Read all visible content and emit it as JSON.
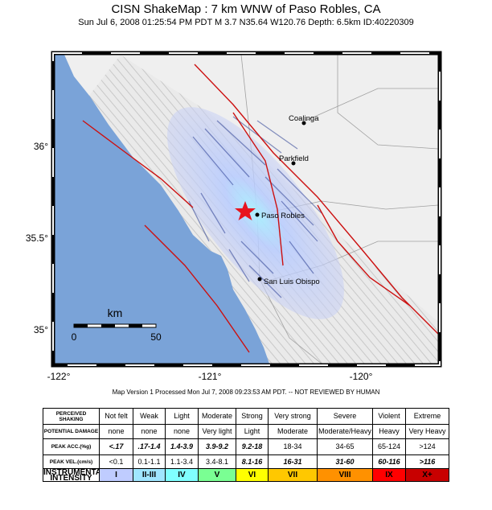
{
  "header": {
    "title": "CISN ShakeMap : 7 km WNW of  Paso Robles, CA",
    "subtitle": "Sun Jul  6, 2008 01:25:54 PM PDT   M 3.7   N35.64 W120.76   Depth: 6.5km   ID:40220309"
  },
  "map": {
    "lat_labels": [
      "36°",
      "35.5°",
      "35°"
    ],
    "lon_labels": [
      "-122°",
      "-121°",
      "-120°"
    ],
    "cities": [
      "Coalinga",
      "Parkfield",
      "Paso Robles",
      "San Luis Obispo"
    ],
    "scale": {
      "unit": "km",
      "start": "0",
      "end": "50"
    }
  },
  "footer": "Map Version 1 Processed Mon Jul 7, 2008 09:23:53 AM PDT. -- NOT REVIEWED BY HUMAN",
  "table": {
    "rows": [
      [
        "PERCEIVED SHAKING",
        "Not felt",
        "Weak",
        "Light",
        "Moderate",
        "Strong",
        "Very strong",
        "Severe",
        "Violent",
        "Extreme"
      ],
      [
        "POTENTIAL DAMAGE",
        "none",
        "none",
        "none",
        "Very light",
        "Light",
        "Moderate",
        "Moderate/Heavy",
        "Heavy",
        "Very Heavy"
      ],
      [
        "PEAK ACC.(%g)",
        "<.17",
        ".17-1.4",
        "1.4-3.9",
        "3.9-9.2",
        "9.2-18",
        "18-34",
        "34-65",
        "65-124",
        ">124"
      ],
      [
        "PEAK VEL.(cm/s)",
        "<0.1",
        "0.1-1.1",
        "1.1-3.4",
        "3.4-8.1",
        "8.1-16",
        "16-31",
        "31-60",
        "60-116",
        ">116"
      ],
      [
        "INSTRUMENTAL INTENSITY",
        "I",
        "II-III",
        "IV",
        "V",
        "VI",
        "VII",
        "VIII",
        "IX",
        "X+"
      ]
    ]
  }
}
